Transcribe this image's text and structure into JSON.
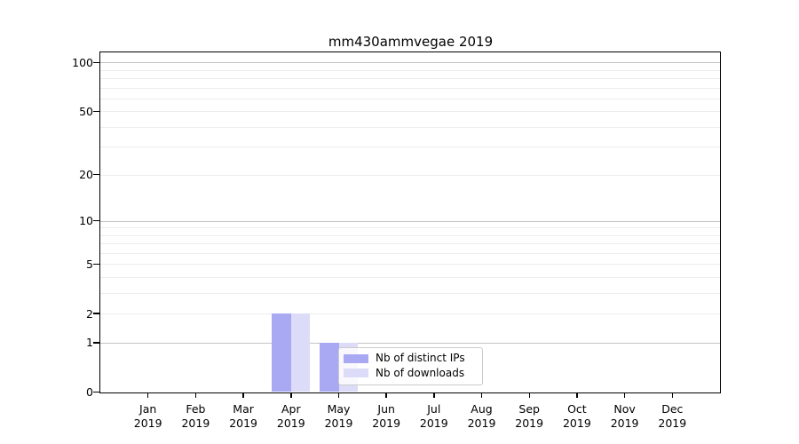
{
  "figure": {
    "background": "#ffffff"
  },
  "chart_data": {
    "type": "bar",
    "title": "mm430ammvegae 2019",
    "x_tick_months": [
      "Jan",
      "Feb",
      "Mar",
      "Apr",
      "May",
      "Jun",
      "Jul",
      "Aug",
      "Sep",
      "Oct",
      "Nov",
      "Dec"
    ],
    "x_tick_year": "2019",
    "y_tick_labels": [
      "0",
      "1",
      "2",
      "5",
      "10",
      "20",
      "50",
      "100"
    ],
    "y_tick_values": [
      0,
      1,
      2,
      5,
      10,
      20,
      50,
      100
    ],
    "y_scale": "log10(1+y)",
    "ylim": [
      0,
      116
    ],
    "grid": {
      "minor_values": [
        2,
        3,
        4,
        5,
        6,
        7,
        8,
        9,
        20,
        30,
        40,
        50,
        60,
        70,
        80,
        90
      ],
      "major_values": [
        1,
        10,
        100
      ],
      "minor_color": "#ececec",
      "major_color": "#c4c4c4"
    },
    "series": [
      {
        "name": "Nb of distinct IPs",
        "color": "#a9a9f3",
        "values": [
          0,
          0,
          0,
          2,
          1,
          0,
          0,
          0,
          0,
          0,
          0,
          0
        ]
      },
      {
        "name": "Nb of downloads",
        "color": "#dcdcf9",
        "values": [
          0,
          0,
          0,
          2,
          1,
          0,
          0,
          0,
          0,
          0,
          0,
          0
        ]
      }
    ],
    "legend": {
      "position": "inside-bottom-center",
      "frame_color": "#cbcbcb",
      "background": "rgba(255,255,255,0.8)"
    },
    "axis_color": "#000000"
  }
}
